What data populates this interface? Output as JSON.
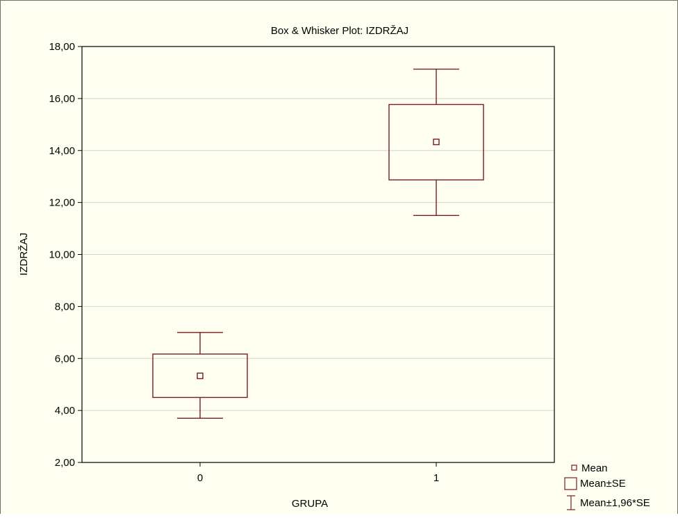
{
  "chart_data": {
    "type": "box",
    "title": "Box & Whisker Plot: IZDRŽAJ",
    "xlabel": "GRUPA",
    "ylabel": "IZDRŽAJ",
    "ylim": [
      2,
      18
    ],
    "yticks": [
      "2,00",
      "4,00",
      "6,00",
      "8,00",
      "10,00",
      "12,00",
      "14,00",
      "16,00",
      "18,00"
    ],
    "ytick_values": [
      2,
      4,
      6,
      8,
      10,
      12,
      14,
      16,
      18
    ],
    "categories": [
      "0",
      "1"
    ],
    "grid": true,
    "legend_position": "bottom-right",
    "legend": [
      "Mean",
      "Mean±SE",
      "Mean±1,96*SE"
    ],
    "boxes": [
      {
        "category": "0",
        "mean": 5.33,
        "se_low": 4.5,
        "se_high": 6.17,
        "ci_low": 3.7,
        "ci_high": 7.0
      },
      {
        "category": "1",
        "mean": 14.33,
        "se_low": 12.87,
        "se_high": 15.77,
        "ci_low": 11.5,
        "ci_high": 17.13
      }
    ],
    "colors": {
      "series": "#7b1b1b",
      "background": "#fffff2",
      "grid": "#d4d4d4",
      "axis": "#000000"
    }
  }
}
